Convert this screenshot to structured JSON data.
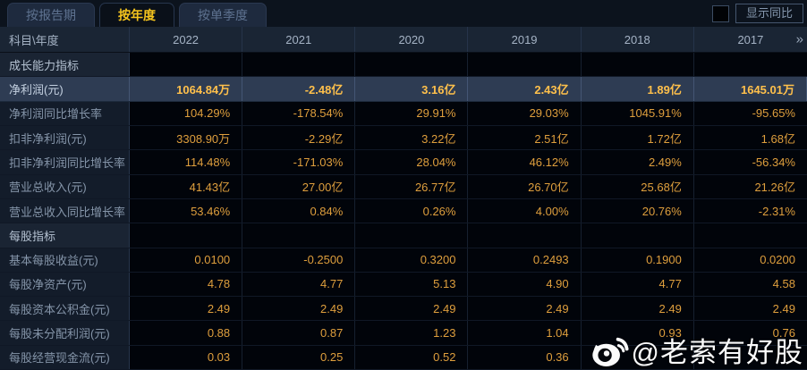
{
  "tabs": [
    {
      "label": "按报告期",
      "active": false
    },
    {
      "label": "按年度",
      "active": true
    },
    {
      "label": "按单季度",
      "active": false
    }
  ],
  "controls": {
    "show_yoy_label": "显示同比",
    "yoy_checked": false
  },
  "table": {
    "corner_label": "科目\\年度",
    "columns": [
      "2022",
      "2021",
      "2020",
      "2019",
      "2018",
      "2017"
    ],
    "more_icon": "»",
    "rows": [
      {
        "label": "成长能力指标",
        "type": "section",
        "values": [
          "",
          "",
          "",
          "",
          "",
          ""
        ]
      },
      {
        "label": "净利润(元)",
        "type": "highlight",
        "values": [
          "1064.84万",
          "-2.48亿",
          "3.16亿",
          "2.43亿",
          "1.89亿",
          "1645.01万"
        ]
      },
      {
        "label": "净利润同比增长率",
        "type": "normal",
        "values": [
          "104.29%",
          "-178.54%",
          "29.91%",
          "29.03%",
          "1045.91%",
          "-95.65%"
        ]
      },
      {
        "label": "扣非净利润(元)",
        "type": "normal",
        "values": [
          "3308.90万",
          "-2.29亿",
          "3.22亿",
          "2.51亿",
          "1.72亿",
          "1.68亿"
        ]
      },
      {
        "label": "扣非净利润同比增长率",
        "type": "normal",
        "values": [
          "114.48%",
          "-171.03%",
          "28.04%",
          "46.12%",
          "2.49%",
          "-56.34%"
        ]
      },
      {
        "label": "营业总收入(元)",
        "type": "normal",
        "values": [
          "41.43亿",
          "27.00亿",
          "26.77亿",
          "26.70亿",
          "25.68亿",
          "21.26亿"
        ]
      },
      {
        "label": "营业总收入同比增长率",
        "type": "normal",
        "values": [
          "53.46%",
          "0.84%",
          "0.26%",
          "4.00%",
          "20.76%",
          "-2.31%"
        ]
      },
      {
        "label": "每股指标",
        "type": "section",
        "values": [
          "",
          "",
          "",
          "",
          "",
          ""
        ]
      },
      {
        "label": "基本每股收益(元)",
        "type": "normal",
        "values": [
          "0.0100",
          "-0.2500",
          "0.3200",
          "0.2493",
          "0.1900",
          "0.0200"
        ]
      },
      {
        "label": "每股净资产(元)",
        "type": "normal",
        "values": [
          "4.78",
          "4.77",
          "5.13",
          "4.90",
          "4.77",
          "4.58"
        ]
      },
      {
        "label": "每股资本公积金(元)",
        "type": "normal",
        "values": [
          "2.49",
          "2.49",
          "2.49",
          "2.49",
          "2.49",
          "2.49"
        ]
      },
      {
        "label": "每股未分配利润(元)",
        "type": "normal",
        "values": [
          "0.88",
          "0.87",
          "1.23",
          "1.04",
          "0.93",
          "0.76"
        ]
      },
      {
        "label": "每股经营现金流(元)",
        "type": "normal",
        "values": [
          "0.03",
          "0.25",
          "0.52",
          "0.36",
          "",
          ""
        ]
      }
    ]
  },
  "watermark": {
    "handle": "@老索有好股"
  },
  "colors": {
    "accent_gold": "#f5c41d",
    "value_gold": "#df9f3d",
    "highlight_value_gold": "#ffc04b",
    "highlight_row_bg": "#2e3c53",
    "header_bg": "#1a2534",
    "label_col_bg": "#131c2a",
    "value_cell_bg": "#01040a",
    "page_bg": "#05080d"
  }
}
